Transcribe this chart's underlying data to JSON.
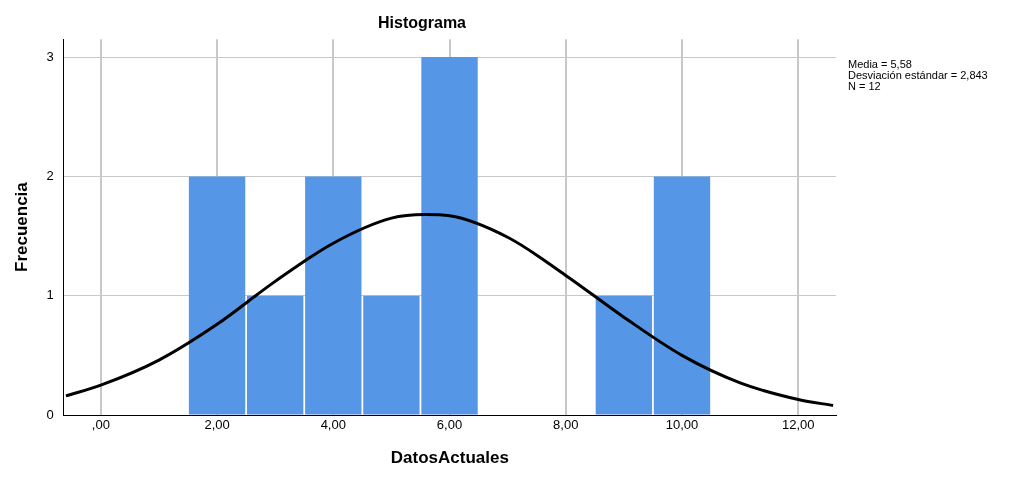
{
  "chart_data": {
    "type": "histogram",
    "title": "Histograma",
    "xlabel": "DatosActuales",
    "ylabel": "Frecuencia",
    "bins": [
      1.5,
      2.5,
      3.5,
      4.5,
      5.5,
      6.5,
      7.5,
      8.5,
      9.5,
      10.5
    ],
    "values": [
      2,
      1,
      2,
      1,
      3,
      0,
      0,
      1,
      2
    ],
    "color": "#5596e6",
    "series": [
      {
        "type": "line",
        "color": "#000000",
        "x": [
          -0.6,
          0,
          1,
          2,
          3,
          4,
          5,
          5.58,
          6,
          7,
          8,
          9,
          10,
          11,
          12,
          12.6
        ],
        "values": [
          0.16,
          0.25,
          0.46,
          0.76,
          1.12,
          1.44,
          1.65,
          1.68,
          1.67,
          1.49,
          1.17,
          0.82,
          0.5,
          0.27,
          0.13,
          0.08
        ]
      }
    ],
    "xlim": [
      -0.64,
      12.65
    ],
    "xticks": [
      {
        "value": 0,
        "label": ",00"
      },
      {
        "value": 2,
        "label": "2,00"
      },
      {
        "value": 4,
        "label": "4,00"
      },
      {
        "value": 6,
        "label": "6,00"
      },
      {
        "value": 8,
        "label": "8,00"
      },
      {
        "value": 10,
        "label": "10,00"
      },
      {
        "value": 12,
        "label": "12,00"
      }
    ],
    "ylim": [
      0,
      3.15
    ],
    "yticks": [
      0,
      1,
      2,
      3
    ],
    "grid": true,
    "legend": false,
    "marker": "none",
    "annotations": [
      "Media = 5,58",
      "Desviación estándar = 2,843",
      "N = 12"
    ]
  }
}
